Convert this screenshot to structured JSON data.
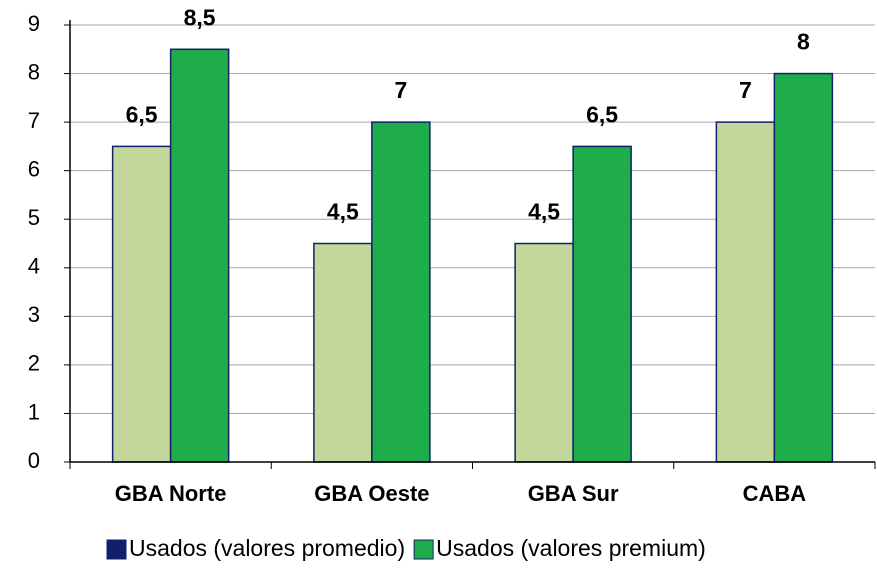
{
  "chart_data": {
    "type": "bar",
    "categories": [
      "GBA Norte",
      "GBA Oeste",
      "GBA Sur",
      "CABA"
    ],
    "series": [
      {
        "name": "Usados (valores promedio)",
        "color": "#c4d79b",
        "legend_color": "#10206b",
        "values": [
          6.5,
          4.5,
          4.5,
          7
        ],
        "value_labels": [
          "6,5",
          "4,5",
          "4,5",
          "7"
        ]
      },
      {
        "name": "Usados (valores premium)",
        "color": "#1fad4b",
        "legend_color": "#1fad4b",
        "values": [
          8.5,
          7,
          6.5,
          8
        ],
        "value_labels": [
          "8,5",
          "7",
          "6,5",
          "8"
        ]
      }
    ],
    "ylim": [
      0,
      9
    ],
    "yticks": [
      0,
      1,
      2,
      3,
      4,
      5,
      6,
      7,
      8,
      9
    ],
    "grid": true
  }
}
